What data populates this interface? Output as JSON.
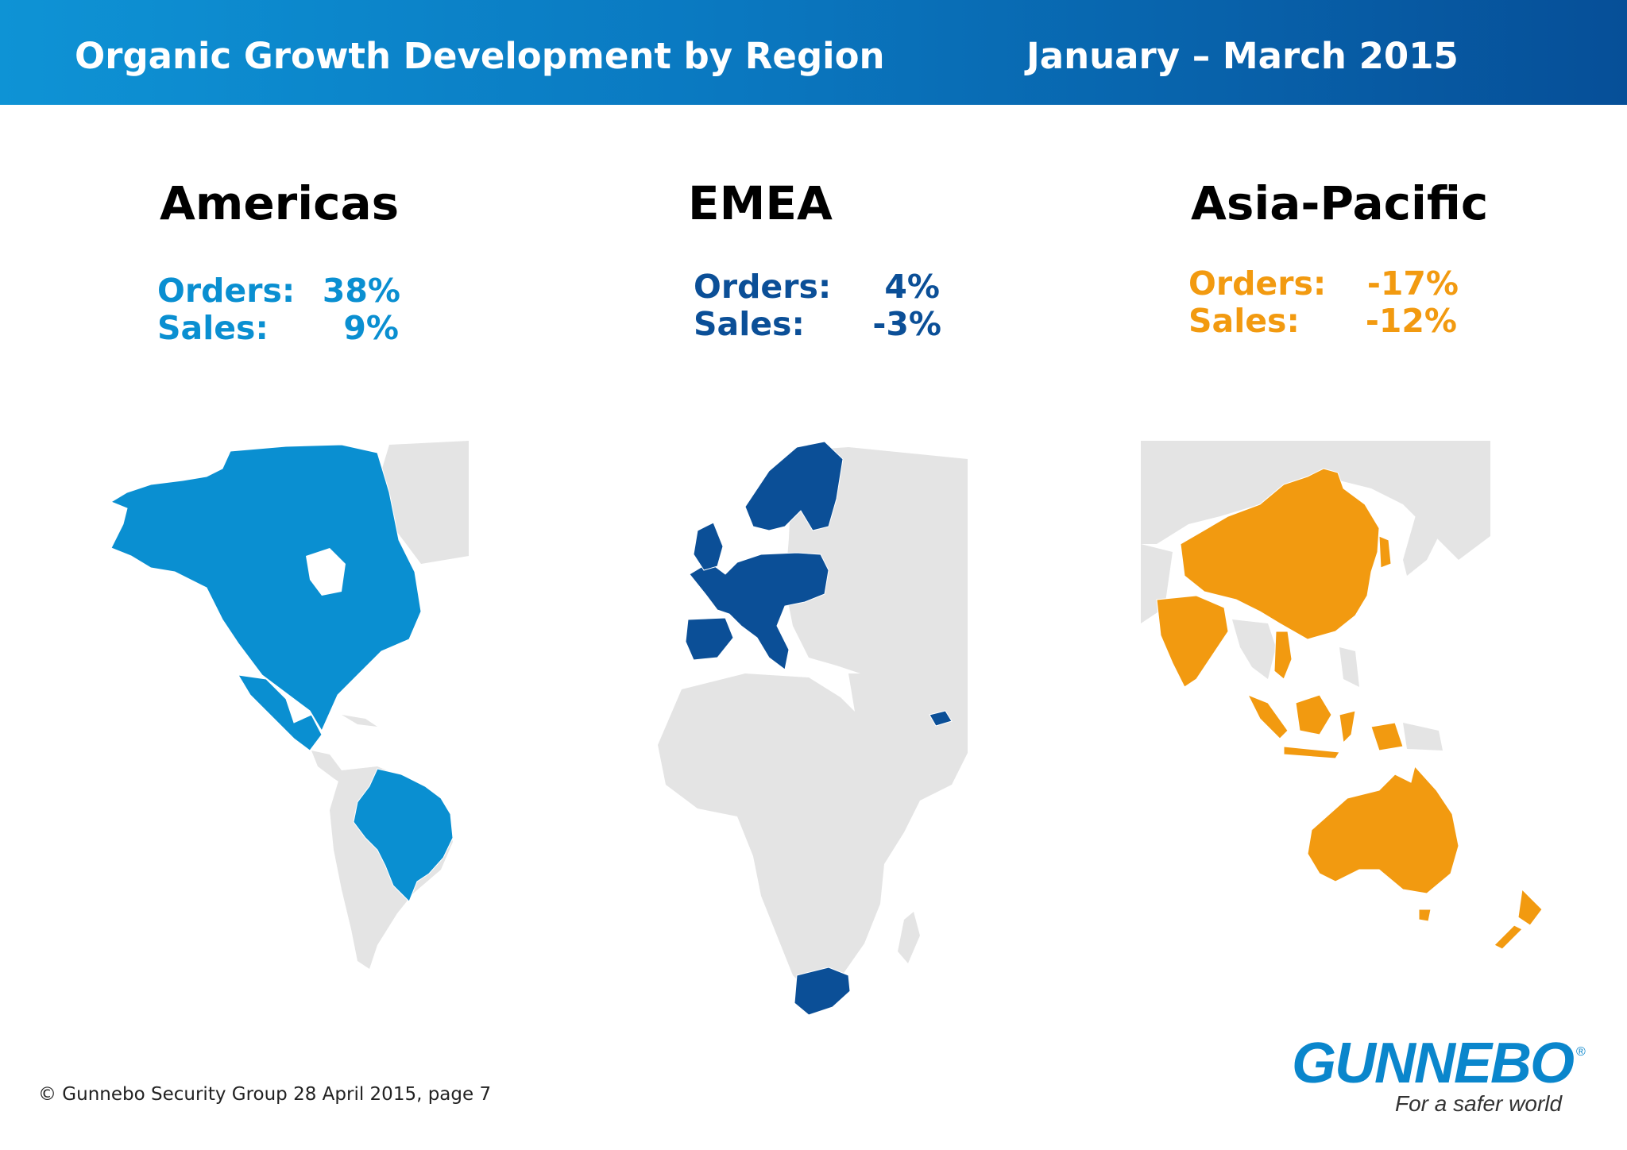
{
  "header": {
    "title": "Organic Growth Development by Region",
    "period": "January – March 2015"
  },
  "regions": [
    {
      "name": "Americas",
      "orders_label": "Orders:",
      "orders_value": "38%",
      "sales_label": "Sales:",
      "sales_value": "9%",
      "color": "#0a8fd1"
    },
    {
      "name": "EMEA",
      "orders_label": "Orders:",
      "orders_value": "4%",
      "sales_label": "Sales:",
      "sales_value": "-3%",
      "color": "#0b4f97"
    },
    {
      "name": "Asia-Pacific",
      "orders_label": "Orders:",
      "orders_value": "-17%",
      "sales_label": "Sales:",
      "sales_value": "-12%",
      "color": "#f29a10"
    }
  ],
  "map_colors": {
    "land_other": "#e4e4e4"
  },
  "footer": {
    "copyright": "© Gunnebo Security Group 28 April 2015, page 7"
  },
  "logo": {
    "wordmark": "GUNNEBO",
    "registered": "®",
    "tagline": "For a safer world"
  }
}
